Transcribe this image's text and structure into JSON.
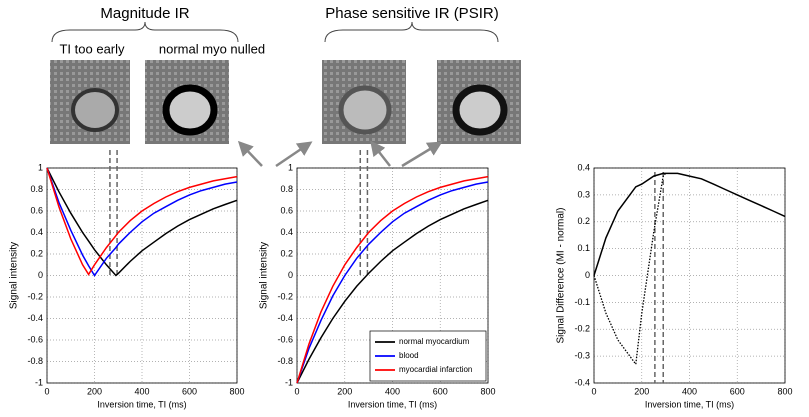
{
  "figure": {
    "titles": [
      "Magnitude IR",
      "Phase sensitive IR (PSIR)"
    ],
    "image_labels": [
      "TI too early",
      "normal myo nulled"
    ]
  },
  "chart_data": [
    {
      "type": "line",
      "xlabel": "Inversion time, TI (ms)",
      "ylabel": "Signal intensity",
      "x": [
        0,
        50,
        100,
        150,
        175,
        200,
        250,
        290,
        300,
        350,
        400,
        450,
        500,
        550,
        600,
        650,
        700,
        750,
        800
      ],
      "xlim": [
        0,
        800
      ],
      "xticks": [
        0,
        200,
        400,
        600,
        800
      ],
      "ylim": [
        -1,
        1
      ],
      "yticks": [
        -1,
        -0.8,
        -0.6,
        -0.4,
        -0.2,
        0,
        0.2,
        0.4,
        0.6,
        0.8,
        1
      ],
      "grid": true,
      "reference_lines": [
        265,
        295
      ],
      "series": [
        {
          "color": "#000000",
          "values": [
            1,
            0.78,
            0.58,
            0.4,
            0.32,
            0.24,
            0.1,
            0,
            0.02,
            0.13,
            0.23,
            0.31,
            0.39,
            0.46,
            0.52,
            0.57,
            0.62,
            0.66,
            0.7
          ]
        },
        {
          "color": "#0000ff",
          "values": [
            1,
            0.68,
            0.42,
            0.19,
            0.09,
            0,
            0.16,
            0.26,
            0.29,
            0.4,
            0.5,
            0.58,
            0.64,
            0.7,
            0.75,
            0.79,
            0.82,
            0.85,
            0.87
          ]
        },
        {
          "color": "#ff0000",
          "values": [
            1,
            0.64,
            0.34,
            0.1,
            0.01,
            0.1,
            0.26,
            0.37,
            0.4,
            0.51,
            0.6,
            0.67,
            0.73,
            0.78,
            0.82,
            0.85,
            0.88,
            0.9,
            0.92
          ]
        }
      ]
    },
    {
      "type": "line",
      "xlabel": "Inversion time, TI (ms)",
      "ylabel": "Signal intensity",
      "x": [
        0,
        50,
        100,
        150,
        200,
        250,
        300,
        350,
        400,
        450,
        500,
        550,
        600,
        650,
        700,
        750,
        800
      ],
      "xlim": [
        0,
        800
      ],
      "xticks": [
        0,
        200,
        400,
        600,
        800
      ],
      "ylim": [
        -1,
        1
      ],
      "yticks": [
        -1,
        -0.8,
        -0.6,
        -0.4,
        -0.2,
        0,
        0.2,
        0.4,
        0.6,
        0.8,
        1
      ],
      "grid": true,
      "reference_lines": [
        265,
        295
      ],
      "legend": "lower right",
      "series": [
        {
          "name": "normal myocardium",
          "color": "#000000",
          "values": [
            -1,
            -0.78,
            -0.58,
            -0.4,
            -0.24,
            -0.1,
            0.02,
            0.13,
            0.23,
            0.31,
            0.39,
            0.46,
            0.52,
            0.57,
            0.62,
            0.66,
            0.7
          ]
        },
        {
          "name": "blood",
          "color": "#0000ff",
          "values": [
            -1,
            -0.68,
            -0.42,
            -0.19,
            0,
            0.16,
            0.29,
            0.4,
            0.5,
            0.58,
            0.64,
            0.7,
            0.75,
            0.79,
            0.82,
            0.85,
            0.87
          ]
        },
        {
          "name": "myocardial infarction",
          "color": "#ff0000",
          "values": [
            -1,
            -0.64,
            -0.34,
            -0.1,
            0.1,
            0.26,
            0.4,
            0.51,
            0.6,
            0.67,
            0.73,
            0.78,
            0.82,
            0.85,
            0.88,
            0.9,
            0.92
          ]
        }
      ]
    },
    {
      "type": "line",
      "xlabel": "Inversion time, TI (ms)",
      "ylabel": "Signal Difference (MI - normal)",
      "x": [
        0,
        50,
        100,
        150,
        175,
        200,
        250,
        290,
        300,
        350,
        400,
        450,
        500,
        550,
        600,
        650,
        700,
        750,
        800
      ],
      "xlim": [
        0,
        800
      ],
      "xticks": [
        0,
        200,
        400,
        600,
        800
      ],
      "ylim": [
        -0.4,
        0.4
      ],
      "yticks": [
        -0.4,
        -0.3,
        -0.2,
        -0.1,
        0,
        0.1,
        0.2,
        0.3,
        0.4
      ],
      "grid": true,
      "reference_lines": [
        255,
        290
      ],
      "series": [
        {
          "color": "#000000",
          "style": "dotted",
          "values": [
            0,
            -0.14,
            -0.24,
            -0.3,
            -0.33,
            -0.14,
            0.16,
            0.37,
            0.38,
            null,
            null,
            null,
            null,
            null,
            null,
            null,
            null,
            null,
            null
          ]
        },
        {
          "color": "#000000",
          "style": "solid",
          "values": [
            0,
            0.14,
            0.24,
            0.3,
            0.33,
            0.34,
            0.37,
            0.38,
            0.38,
            0.38,
            0.37,
            0.36,
            0.34,
            0.32,
            0.3,
            0.28,
            0.26,
            0.24,
            0.22
          ]
        }
      ]
    }
  ]
}
